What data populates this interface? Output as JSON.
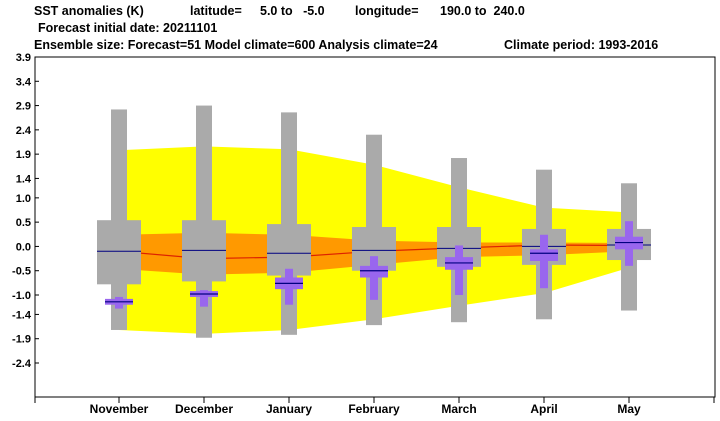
{
  "header": {
    "title": "SST anomalies (K)",
    "latitude_label": "latitude=",
    "latitude_range": "5.0 to   -5.0",
    "longitude_label": "longitude=",
    "longitude_range": "190.0 to  240.0",
    "forecast_date": "Forecast initial date: 20211101",
    "ensemble_info": "Ensemble size: Forecast=51 Model climate=600 Analysis climate=24",
    "climate_period": "Climate period: 1993-2016"
  },
  "chart_data": {
    "type": "box",
    "title": "SST anomalies (K)",
    "categories": [
      "November",
      "December",
      "January",
      "February",
      "March",
      "April",
      "May"
    ],
    "y_ticks": [
      "3.9",
      "3.4",
      "2.9",
      "2.4",
      "1.9",
      "1.4",
      "1.0",
      "0.5",
      "0.0",
      "-0.5",
      "-1.0",
      "-1.4",
      "-1.9",
      "-2.4"
    ],
    "ylim": [
      -3.1,
      3.9
    ],
    "colors": {
      "outer_band": "#ffff00",
      "inner_band": "#ff9900",
      "model_box": "#aaaaaa",
      "forecast_box": "#9966ee",
      "median_line": "#000080",
      "center_line": "#dd2200"
    },
    "climate_bands": {
      "outer_high": [
        1.98,
        2.06,
        2.0,
        1.68,
        1.22,
        0.8,
        0.7
      ],
      "outer_low": [
        -1.72,
        -1.8,
        -1.72,
        -1.5,
        -1.22,
        -0.96,
        -0.44
      ],
      "inner_high": [
        0.24,
        0.28,
        0.24,
        0.12,
        0.08,
        0.08,
        0.07
      ],
      "inner_low": [
        -0.46,
        -0.58,
        -0.54,
        -0.38,
        -0.22,
        -0.18,
        -0.1
      ],
      "center": [
        -0.1,
        -0.25,
        -0.22,
        -0.1,
        -0.03,
        0.03,
        0.02
      ]
    },
    "model_climate": {
      "whisker_high": [
        2.82,
        2.9,
        2.76,
        2.3,
        1.82,
        1.58,
        1.3
      ],
      "box_high": [
        0.54,
        0.54,
        0.46,
        0.4,
        0.4,
        0.36,
        0.36
      ],
      "median": [
        -0.1,
        -0.08,
        -0.14,
        -0.08,
        -0.04,
        0.0,
        0.03
      ],
      "box_low": [
        -0.78,
        -0.72,
        -0.6,
        -0.5,
        -0.42,
        -0.38,
        -0.28
      ],
      "whisker_low": [
        -1.72,
        -1.88,
        -1.82,
        -1.62,
        -1.56,
        -1.5,
        -1.32
      ]
    },
    "forecast": {
      "whisker_high": [
        -1.04,
        -0.9,
        -0.46,
        -0.2,
        0.02,
        0.24,
        0.52
      ],
      "box_high": [
        -1.08,
        -0.92,
        -0.64,
        -0.4,
        -0.22,
        -0.06,
        0.2
      ],
      "median": [
        -1.14,
        -0.98,
        -0.76,
        -0.5,
        -0.34,
        -0.14,
        0.08
      ],
      "box_low": [
        -1.2,
        -1.04,
        -0.88,
        -0.64,
        -0.48,
        -0.3,
        -0.06
      ],
      "whisker_low": [
        -1.28,
        -1.24,
        -1.2,
        -1.1,
        -1.0,
        -0.86,
        -0.4
      ]
    }
  }
}
